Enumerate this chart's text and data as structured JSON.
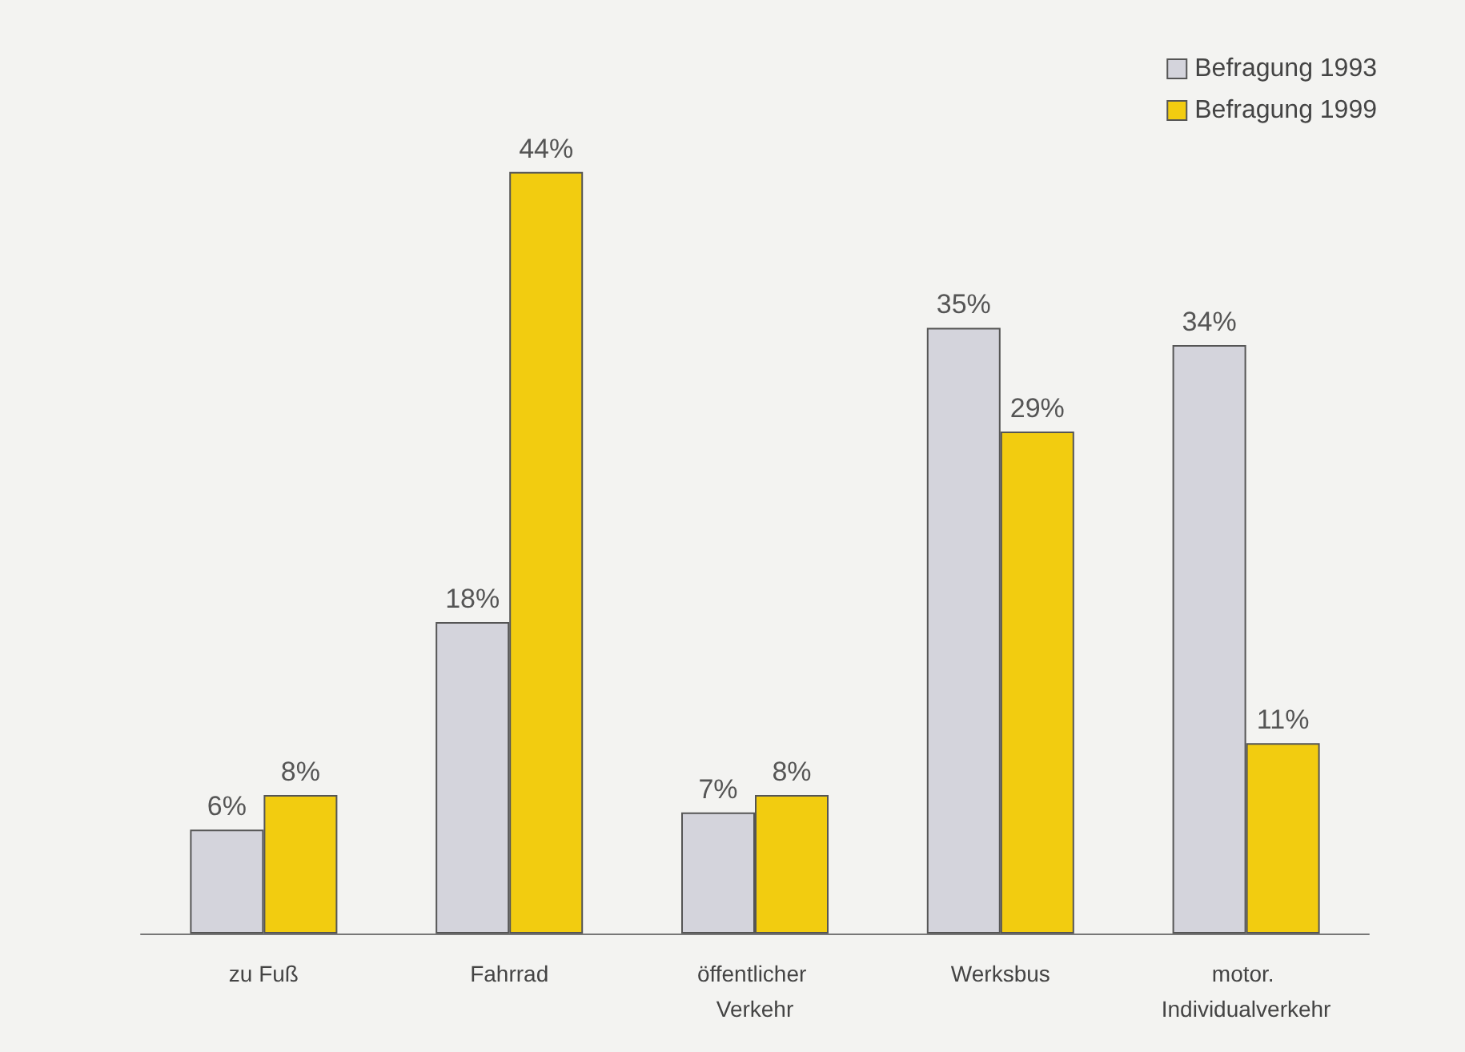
{
  "chart_data": {
    "type": "bar",
    "categories": [
      "zu Fuß",
      "Fahrrad",
      "öffentlicher Verkehr",
      "Werksbus",
      "motor. Individualverkehr"
    ],
    "series": [
      {
        "name": "Befragung 1993",
        "color": "#d4d4dc",
        "values": [
          6,
          18,
          7,
          35,
          34
        ],
        "value_labels": [
          "6%",
          "18%",
          "7%",
          "35%",
          "34%"
        ]
      },
      {
        "name": "Befragung 1999",
        "color": "#f2cc10",
        "values": [
          8,
          44,
          8,
          29,
          11
        ],
        "value_labels": [
          "8%",
          "44%",
          "8%",
          "29%",
          "11%"
        ]
      }
    ],
    "legend": "top right",
    "grid": false
  }
}
